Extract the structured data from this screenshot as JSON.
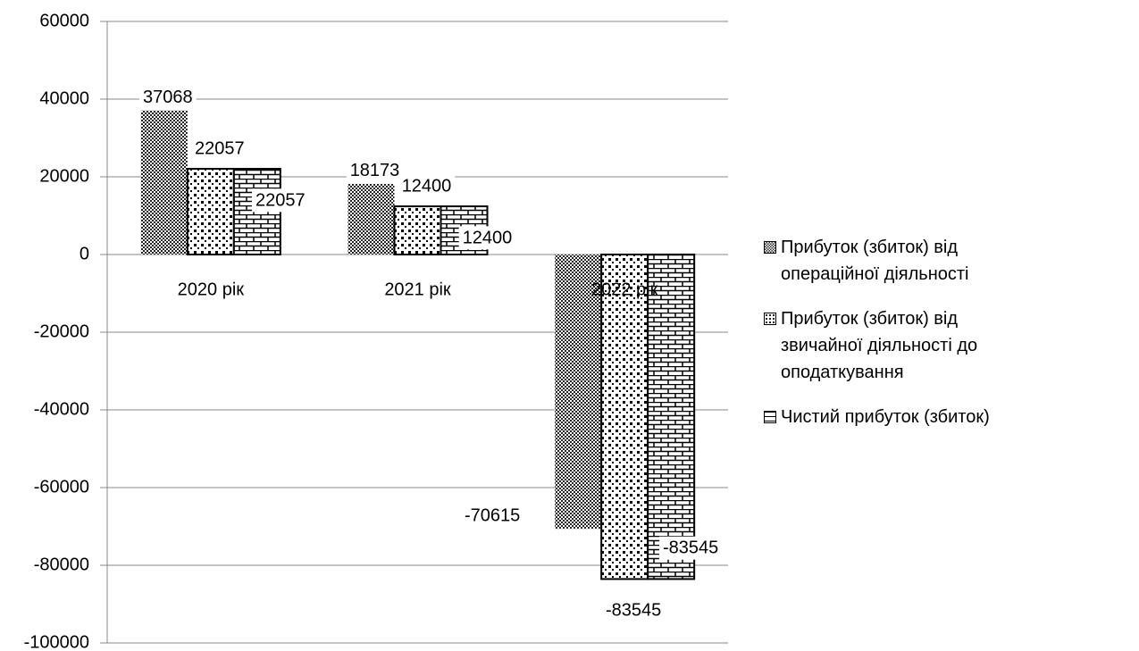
{
  "chart_data": {
    "type": "bar",
    "categories": [
      "2020 рік",
      "2021 рік",
      "2022 рік"
    ],
    "series": [
      {
        "name": "Прибуток (збиток) від операційної діяльності",
        "values": [
          37068,
          18173,
          -70615
        ]
      },
      {
        "name": "Прибуток (збиток) від звичайної діяльності до оподаткування",
        "values": [
          22057,
          12400,
          -83545
        ]
      },
      {
        "name": "Чистий прибуток (збиток)",
        "values": [
          22057,
          12400,
          -83545
        ]
      }
    ],
    "ylim": [
      -100000,
      60000
    ],
    "yticks": [
      -100000,
      -80000,
      -60000,
      -40000,
      -20000,
      0,
      20000,
      40000,
      60000
    ],
    "grid": true,
    "legend": "right"
  }
}
